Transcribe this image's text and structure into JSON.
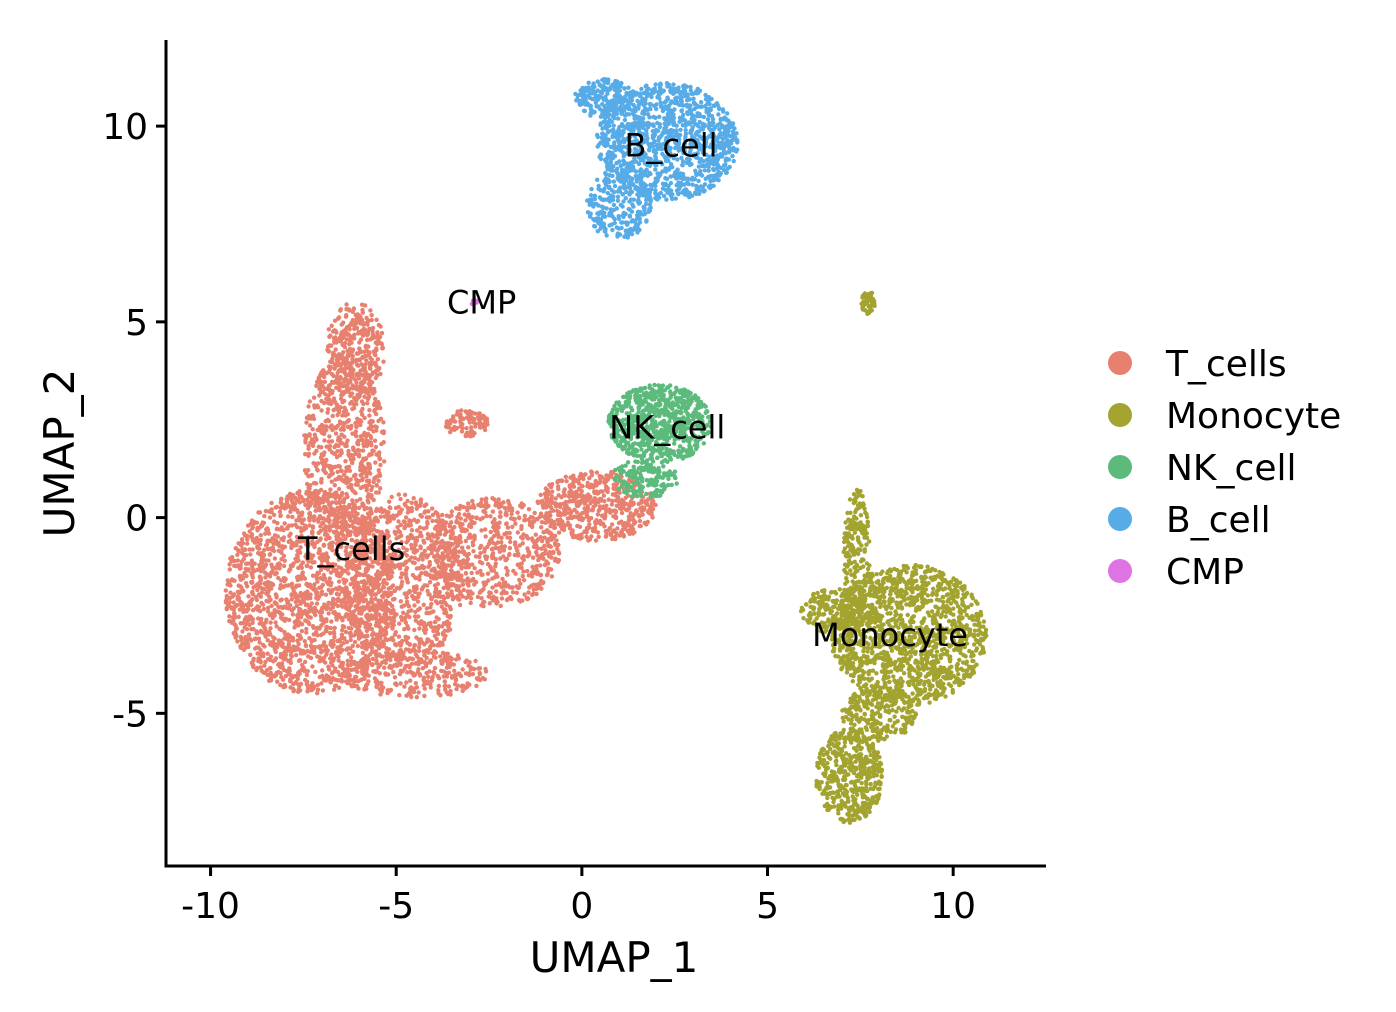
{
  "chart_data": {
    "type": "scatter",
    "title": "",
    "xlabel": "UMAP_1",
    "ylabel": "UMAP_2",
    "xlim": [
      -11.2,
      12.5
    ],
    "ylim": [
      -8.9,
      12.2
    ],
    "x_ticks": [
      -10,
      -5,
      0,
      5,
      10
    ],
    "x_tick_labels": [
      "-10",
      "-5",
      "0",
      "5",
      "10"
    ],
    "y_ticks": [
      -5,
      0,
      5,
      10
    ],
    "y_tick_labels": [
      "-5",
      "0",
      "5",
      "10"
    ],
    "grid": false,
    "legend_position": "right",
    "series": [
      {
        "name": "T_cells",
        "color": "#E8806F"
      },
      {
        "name": "Monocyte",
        "color": "#A3A330"
      },
      {
        "name": "NK_cell",
        "color": "#5CBB7C"
      },
      {
        "name": "B_cell",
        "color": "#57ABE7"
      },
      {
        "name": "CMP",
        "color": "#DE73E4"
      }
    ],
    "clusters": [
      {
        "series": "T_cells",
        "regions": [
          {
            "center": [
              -7.3,
              -1.9
            ],
            "radius": [
              2.3,
              2.6
            ],
            "weight": 0.35
          },
          {
            "center": [
              -4.8,
              -1.6
            ],
            "radius": [
              1.6,
              2.2
            ],
            "weight": 0.16
          },
          {
            "center": [
              -6.4,
              1.8
            ],
            "radius": [
              1.1,
              2.3
            ],
            "weight": 0.13
          },
          {
            "center": [
              -6.1,
              4.3
            ],
            "radius": [
              0.8,
              1.2
            ],
            "weight": 0.06
          },
          {
            "center": [
              -2.4,
              -0.9
            ],
            "radius": [
              1.8,
              1.4
            ],
            "weight": 0.12
          },
          {
            "center": [
              0.4,
              0.3
            ],
            "radius": [
              1.6,
              0.9
            ],
            "weight": 0.1
          },
          {
            "center": [
              -3.1,
              2.4
            ],
            "radius": [
              0.6,
              0.35
            ],
            "weight": 0.02
          },
          {
            "center": [
              -4.5,
              -4.0
            ],
            "radius": [
              2.0,
              0.6
            ],
            "weight": 0.06
          }
        ]
      },
      {
        "series": "Monocyte",
        "regions": [
          {
            "center": [
              8.8,
              -3.0
            ],
            "radius": [
              2.1,
              1.8
            ],
            "weight": 0.55
          },
          {
            "center": [
              7.2,
              -6.6
            ],
            "radius": [
              0.9,
              1.2
            ],
            "weight": 0.18
          },
          {
            "center": [
              7.4,
              -1.0
            ],
            "radius": [
              0.35,
              1.8
            ],
            "weight": 0.08
          },
          {
            "center": [
              6.9,
              -2.4
            ],
            "radius": [
              1.0,
              0.6
            ],
            "weight": 0.08
          },
          {
            "center": [
              8.0,
              -5.0
            ],
            "radius": [
              1.0,
              0.7
            ],
            "weight": 0.09
          },
          {
            "center": [
              7.7,
              5.5
            ],
            "radius": [
              0.2,
              0.3
            ],
            "weight": 0.02
          }
        ]
      },
      {
        "series": "NK_cell",
        "regions": [
          {
            "center": [
              2.1,
              2.4
            ],
            "radius": [
              1.4,
              1.0
            ],
            "weight": 0.82
          },
          {
            "center": [
              1.7,
              1.0
            ],
            "radius": [
              0.9,
              0.5
            ],
            "weight": 0.18
          }
        ]
      },
      {
        "series": "B_cell",
        "regions": [
          {
            "center": [
              2.3,
              9.6
            ],
            "radius": [
              1.9,
              1.5
            ],
            "weight": 0.72
          },
          {
            "center": [
              1.0,
              8.0
            ],
            "radius": [
              0.9,
              0.9
            ],
            "weight": 0.16
          },
          {
            "center": [
              0.6,
              10.7
            ],
            "radius": [
              0.8,
              0.5
            ],
            "weight": 0.12
          }
        ]
      },
      {
        "series": "CMP",
        "regions": [
          {
            "center": [
              -2.9,
              5.5
            ],
            "radius": [
              0.12,
              0.1
            ],
            "weight": 1.0
          }
        ]
      }
    ],
    "cluster_labels": [
      {
        "text": "B_cell",
        "x": 2.4,
        "y": 9.5
      },
      {
        "text": "CMP",
        "x": -2.7,
        "y": 5.5
      },
      {
        "text": "NK_cell",
        "x": 2.3,
        "y": 2.3
      },
      {
        "text": "T_cells",
        "x": -6.2,
        "y": -0.8
      },
      {
        "text": "Monocyte",
        "x": 8.3,
        "y": -3.0
      }
    ]
  }
}
